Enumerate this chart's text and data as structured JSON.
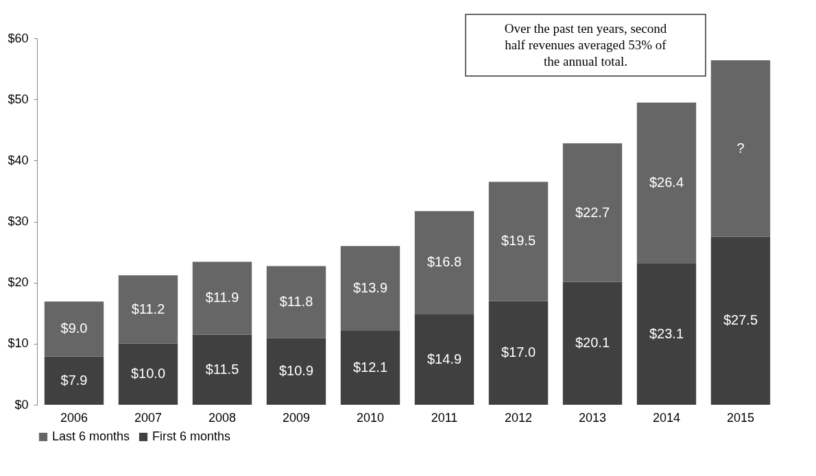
{
  "chart_data": {
    "type": "bar",
    "stacked": true,
    "categories": [
      "2006",
      "2007",
      "2008",
      "2009",
      "2010",
      "2011",
      "2012",
      "2013",
      "2014",
      "2015"
    ],
    "series": [
      {
        "name": "First 6 months",
        "color": "#404040",
        "values": [
          7.9,
          10.0,
          11.5,
          10.9,
          12.1,
          14.9,
          17.0,
          20.1,
          23.1,
          27.5
        ],
        "value_labels": [
          "$7.9",
          "$10.0",
          "$11.5",
          "$10.9",
          "$12.1",
          "$14.9",
          "$17.0",
          "$20.1",
          "$23.1",
          "$27.5"
        ]
      },
      {
        "name": "Last 6 months",
        "color": "#666666",
        "values": [
          9.0,
          11.2,
          11.9,
          11.8,
          13.9,
          16.8,
          19.5,
          22.7,
          26.4,
          28.9
        ],
        "value_labels": [
          "$9.0",
          "$11.2",
          "$11.9",
          "$11.8",
          "$13.9",
          "$16.8",
          "$19.5",
          "$22.7",
          "$26.4",
          "?"
        ]
      }
    ],
    "ylim": [
      0,
      60
    ],
    "yticks": [
      {
        "value": 0,
        "label": "$0"
      },
      {
        "value": 10,
        "label": "$10"
      },
      {
        "value": 20,
        "label": "$20"
      },
      {
        "value": 30,
        "label": "$30"
      },
      {
        "value": 40,
        "label": "$40"
      },
      {
        "value": 50,
        "label": "$50"
      },
      {
        "value": 60,
        "label": "$60"
      }
    ],
    "grid": false,
    "legend": "bottom left",
    "annotations": [
      "Over the past ten years, second half revenues averaged 53% of the annual total."
    ]
  }
}
